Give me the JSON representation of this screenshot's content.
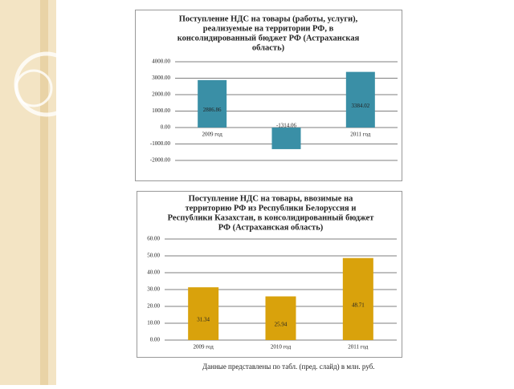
{
  "chart_data": [
    {
      "type": "bar",
      "title": [
        "Поступление НДС на товары (работы, услуги),",
        "реализуемые на территории РФ, в",
        "консолидированный бюджет РФ (Астраханская",
        "область)"
      ],
      "categories": [
        "2009 год",
        null,
        "2011 год"
      ],
      "values": [
        2886.86,
        -1314.06,
        3384.02
      ],
      "color": "#3a8fa6",
      "ylim": [
        -2000,
        4000
      ],
      "yticks": [
        {
          "value": -2000,
          "label": "-2000.00"
        },
        {
          "value": -1000,
          "label": "-1000.00"
        },
        {
          "value": 0,
          "label": "0.00"
        },
        {
          "value": 1000,
          "label": "1000.00"
        },
        {
          "value": 2000,
          "label": "2000.00"
        },
        {
          "value": 3000,
          "label": "3000.00"
        },
        {
          "value": 4000,
          "label": "4000.00"
        }
      ],
      "grid": true
    },
    {
      "type": "bar",
      "title": [
        "Поступление НДС на товары, ввозимые на",
        "территорию РФ из Республики Белоруссия и",
        "Республики Казахстан, в консолидированный бюджет",
        "РФ (Астраханская область)"
      ],
      "categories": [
        "2009 год",
        "2010 год",
        "2011 год"
      ],
      "values": [
        31.34,
        25.94,
        48.71
      ],
      "color": "#d9a20c",
      "ylim": [
        0,
        60
      ],
      "yticks": [
        {
          "value": 0,
          "label": "0.00"
        },
        {
          "value": 10,
          "label": "10.00"
        },
        {
          "value": 20,
          "label": "20.00"
        },
        {
          "value": 30,
          "label": "30.00"
        },
        {
          "value": 40,
          "label": "40.00"
        },
        {
          "value": 50,
          "label": "50.00"
        },
        {
          "value": 60,
          "label": "60.00"
        }
      ],
      "grid": true
    }
  ],
  "footer": "Данные представлены по табл. (пред. слайд) в млн. руб."
}
